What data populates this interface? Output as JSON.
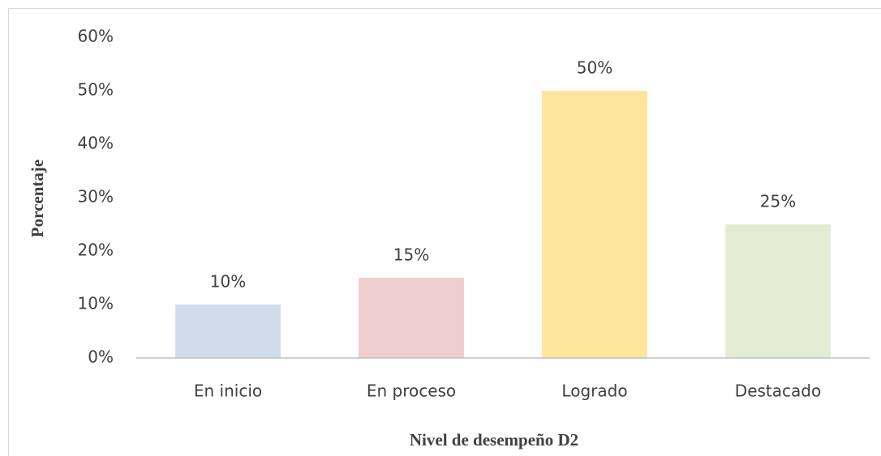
{
  "chart_data": {
    "type": "bar",
    "x_label": "Nivel de desempeño D2",
    "y_label": "Porcentaje",
    "categories": [
      "En inicio",
      "En proceso",
      "Logrado",
      "Destacado"
    ],
    "values": [
      10,
      15,
      50,
      25
    ],
    "value_labels": [
      "10%",
      "15%",
      "50%",
      "25%"
    ],
    "colors": [
      "#cfdcec",
      "#eecdce",
      "#fde69c",
      "#e3ecd3"
    ],
    "ylim": [
      0,
      60
    ],
    "yticks": [
      {
        "value": 0,
        "label": "0%"
      },
      {
        "value": 10,
        "label": "10%"
      },
      {
        "value": 20,
        "label": "20%"
      },
      {
        "value": 30,
        "label": "30%"
      },
      {
        "value": 40,
        "label": "40%"
      },
      {
        "value": 50,
        "label": "50%"
      },
      {
        "value": 60,
        "label": "60%"
      }
    ],
    "grid": false
  }
}
